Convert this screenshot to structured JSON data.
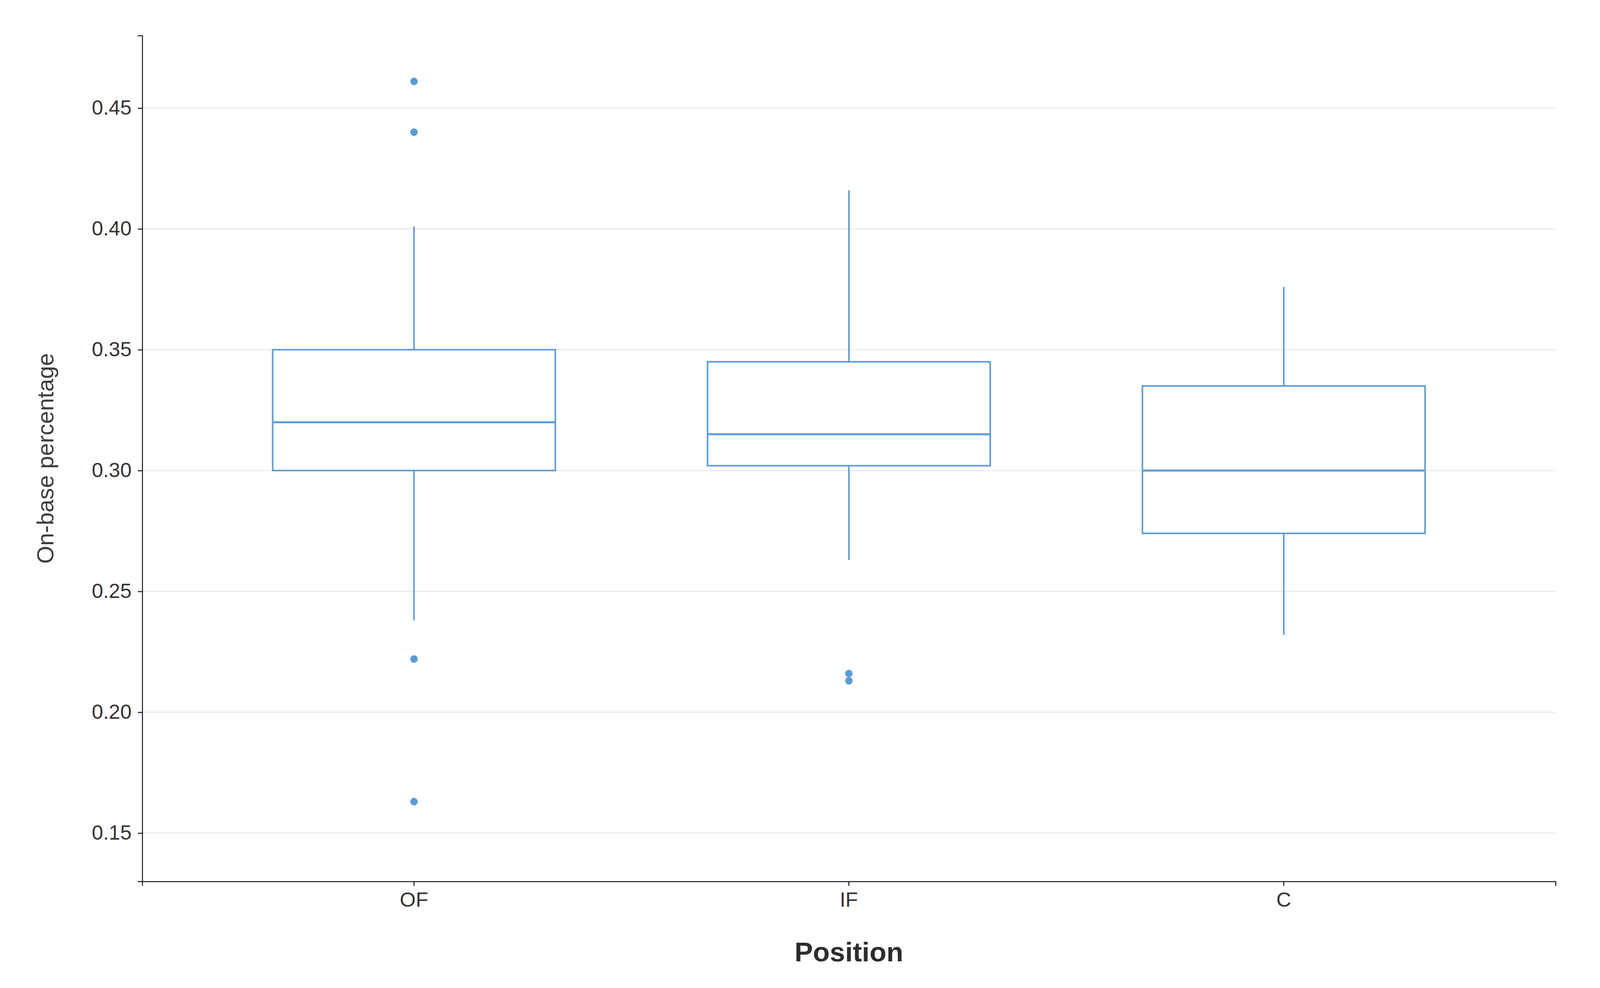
{
  "chart_data": {
    "type": "box",
    "xlabel": "Position",
    "ylabel": "On-base percentage",
    "categories": [
      "OF",
      "IF",
      "C"
    ],
    "boxes": [
      {
        "median": 0.32,
        "q1": 0.3,
        "q3": 0.35,
        "whisker_low": 0.238,
        "whisker_high": 0.401,
        "outliers": [
          0.461,
          0.44,
          0.222,
          0.163
        ]
      },
      {
        "median": 0.315,
        "q1": 0.302,
        "q3": 0.345,
        "whisker_low": 0.263,
        "whisker_high": 0.416,
        "outliers": [
          0.213,
          0.216
        ]
      },
      {
        "median": 0.3,
        "q1": 0.274,
        "q3": 0.335,
        "whisker_low": 0.232,
        "whisker_high": 0.376,
        "outliers": []
      }
    ],
    "color": "#5b9bd5",
    "ylim": [
      0.13,
      0.48
    ],
    "yticks": [
      0.15,
      {
        "value": 0.2,
        "label": "0.20"
      },
      0.25,
      {
        "value": 0.3,
        "label": "0.30"
      },
      0.35,
      {
        "value": 0.4,
        "label": "0.40"
      },
      0.45
    ],
    "grid": true
  }
}
